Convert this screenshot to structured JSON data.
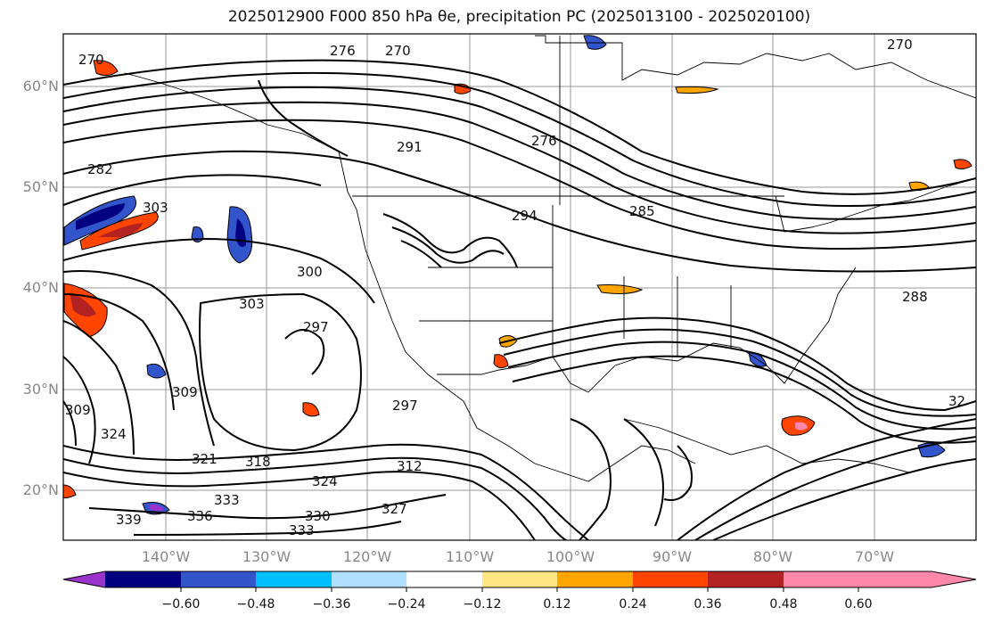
{
  "title": "2025012900 F000 850 hPa θe, precipitation PC (2025013100 - 2025020100)",
  "map": {
    "lat_labels": [
      "60°N",
      "50°N",
      "40°N",
      "30°N",
      "20°N"
    ],
    "lat_values": [
      60,
      50,
      40,
      30,
      20
    ],
    "lon_labels": [
      "140°W",
      "130°W",
      "120°W",
      "110°W",
      "100°W",
      "90°W",
      "80°W",
      "70°W"
    ],
    "lon_values": [
      -140,
      -130,
      -120,
      -110,
      -100,
      -90,
      -80,
      -70
    ],
    "lat_range": [
      15,
      65
    ],
    "lon_range": [
      -150,
      -60
    ],
    "contour_labels": [
      "270",
      "276",
      "270",
      "270",
      "282",
      "303",
      "300",
      "303",
      "297",
      "291",
      "294",
      "285",
      "288",
      "309",
      "309",
      "324",
      "321",
      "318",
      "324",
      "312",
      "330",
      "327",
      "333",
      "336",
      "333",
      "339",
      "32",
      "297",
      "276"
    ]
  },
  "colorbar": {
    "tick_labels": [
      "−0.60",
      "−0.48",
      "−0.36",
      "−0.24",
      "−0.12",
      "0.12",
      "0.24",
      "0.36",
      "0.48",
      "0.60"
    ],
    "colors": [
      "#9933cc",
      "#000080",
      "#3355cc",
      "#00bfff",
      "#b0e0ff",
      "#ffffff",
      "#ffe680",
      "#ffa500",
      "#ff4500",
      "#b22222",
      "#ff88aa"
    ]
  }
}
